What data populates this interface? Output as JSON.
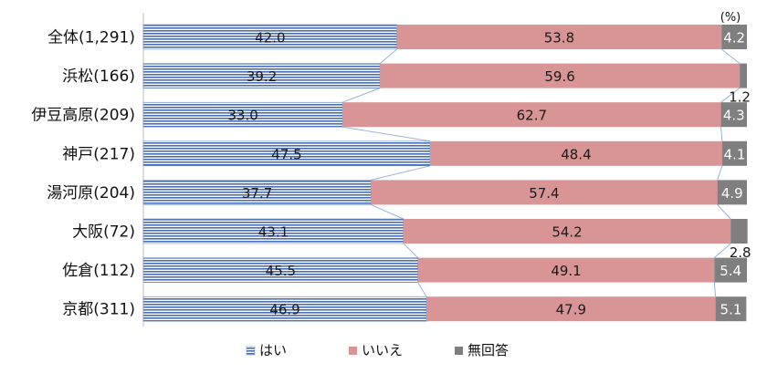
{
  "chart_data": {
    "type": "bar",
    "orientation": "horizontal",
    "stacked": "percent",
    "unit_label": "(%)",
    "categories": [
      "全体(1,291)",
      "浜松(166)",
      "伊豆高原(209)",
      "神戸(217)",
      "湯河原(204)",
      "大阪(72)",
      "佐倉(112)",
      "京都(311)"
    ],
    "series": [
      {
        "name": "はい",
        "color": "#4a6fb5",
        "values": [
          42.0,
          39.2,
          33.0,
          47.5,
          37.7,
          43.1,
          45.5,
          46.9
        ]
      },
      {
        "name": "いいえ",
        "color": "#d99595",
        "values": [
          53.8,
          59.6,
          62.7,
          48.4,
          57.4,
          54.2,
          49.1,
          47.9
        ]
      },
      {
        "name": "無回答",
        "color": "#7f7f7f",
        "values": [
          4.2,
          1.2,
          4.3,
          4.1,
          4.9,
          2.8,
          5.4,
          5.1
        ]
      }
    ],
    "value_labels": [
      [
        "42.0",
        "53.8",
        "4.2"
      ],
      [
        "39.2",
        "59.6",
        "1.2"
      ],
      [
        "33.0",
        "62.7",
        "4.3"
      ],
      [
        "47.5",
        "48.4",
        "4.1"
      ],
      [
        "37.7",
        "57.4",
        "4.9"
      ],
      [
        "43.1",
        "54.2",
        "2.8"
      ],
      [
        "45.5",
        "49.1",
        "5.4"
      ],
      [
        "46.9",
        "47.9",
        "5.1"
      ]
    ],
    "xlim": [
      0,
      100
    ],
    "legend_position": "bottom",
    "series_connector_lines": true,
    "grid": false
  }
}
